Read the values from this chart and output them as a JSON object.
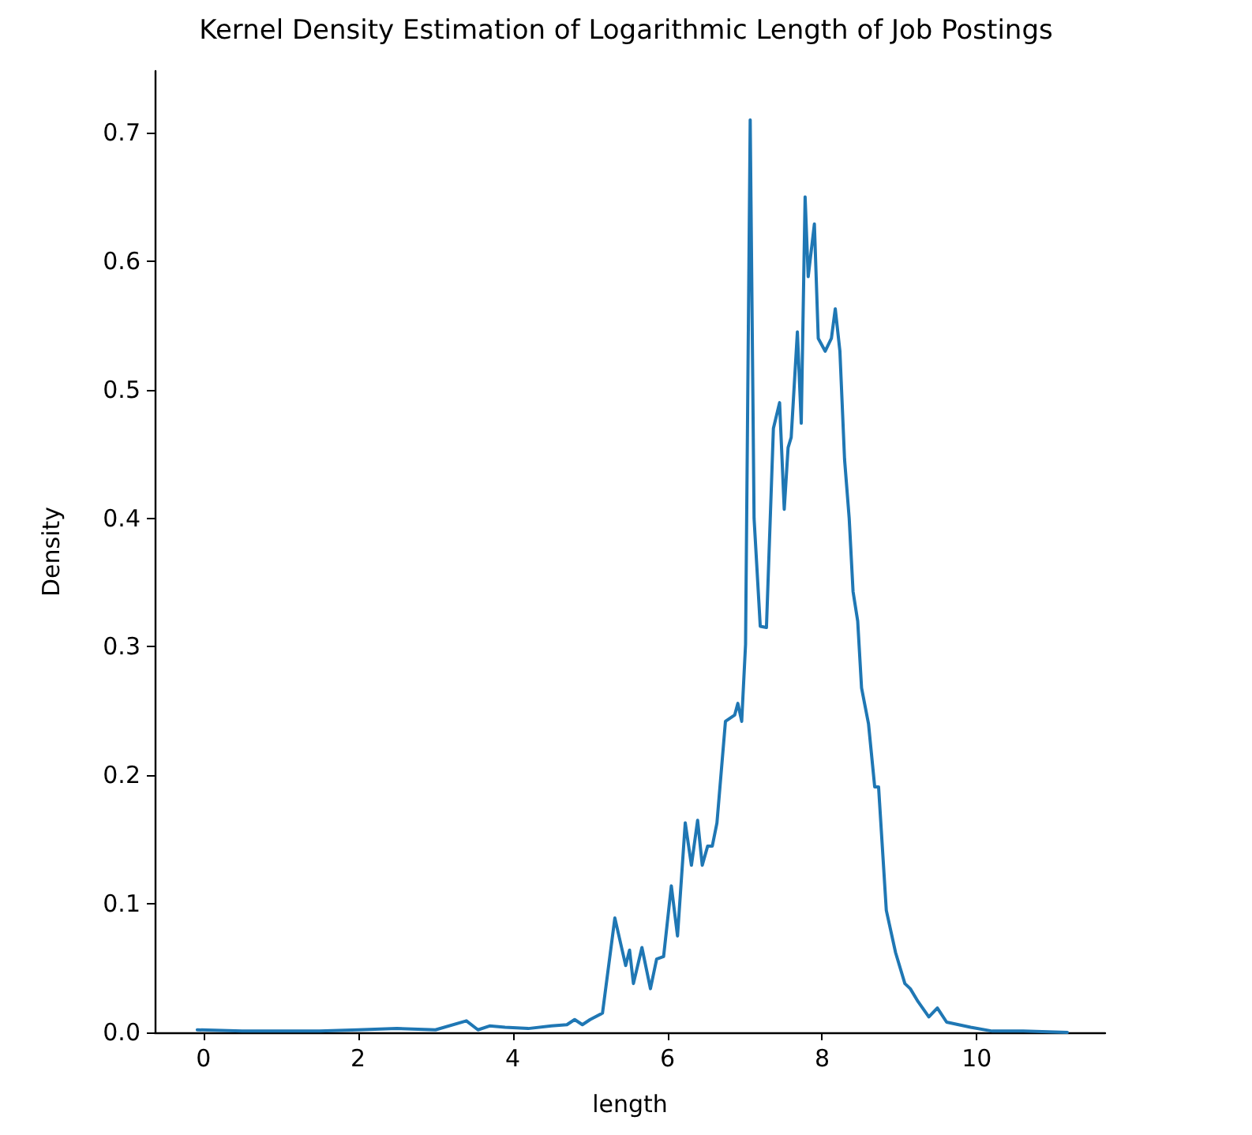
{
  "chart_data": {
    "type": "line",
    "title": "Kernel Density Estimation of Logarithmic Length of Job Postings",
    "xlabel": "length",
    "ylabel": "Density",
    "xlim": [
      -0.63,
      11.66
    ],
    "ylim": [
      0,
      0.748
    ],
    "xticks": [
      0,
      2,
      4,
      6,
      8,
      10
    ],
    "yticks": [
      {
        "value": 0,
        "label": "0.0"
      },
      {
        "value": 0.1,
        "label": "0.1"
      },
      {
        "value": 0.2,
        "label": "0.2"
      },
      {
        "value": 0.3,
        "label": "0.3"
      },
      {
        "value": 0.4,
        "label": "0.4"
      },
      {
        "value": 0.5,
        "label": "0.5"
      },
      {
        "value": 0.6,
        "label": "0.6"
      },
      {
        "value": 0.7,
        "label": "0.7"
      }
    ],
    "grid": false,
    "marker": "none",
    "line_style": "solid",
    "series": [
      {
        "color": "#1f77b4",
        "x": [
          -0.08,
          0.5,
          1.0,
          1.5,
          2.0,
          2.5,
          3.0,
          3.4,
          3.55,
          3.7,
          3.9,
          4.2,
          4.5,
          4.7,
          4.8,
          4.9,
          5.0,
          5.16,
          5.32,
          5.46,
          5.51,
          5.56,
          5.67,
          5.78,
          5.86,
          5.95,
          6.05,
          6.13,
          6.23,
          6.31,
          6.39,
          6.45,
          6.52,
          6.58,
          6.64,
          6.75,
          6.87,
          6.91,
          6.96,
          7.01,
          7.07,
          7.12,
          7.2,
          7.28,
          7.37,
          7.45,
          7.51,
          7.56,
          7.6,
          7.68,
          7.73,
          7.78,
          7.82,
          7.9,
          7.95,
          8.04,
          8.12,
          8.17,
          8.23,
          8.29,
          8.35,
          8.4,
          8.46,
          8.51,
          8.6,
          8.68,
          8.73,
          8.83,
          8.95,
          9.07,
          9.14,
          9.24,
          9.38,
          9.49,
          9.61,
          9.92,
          10.2,
          10.6,
          11.17
        ],
        "values": [
          0.002,
          0.001,
          0.001,
          0.001,
          0.002,
          0.003,
          0.002,
          0.009,
          0.002,
          0.005,
          0.004,
          0.003,
          0.005,
          0.006,
          0.01,
          0.006,
          0.01,
          0.015,
          0.089,
          0.052,
          0.064,
          0.038,
          0.066,
          0.034,
          0.057,
          0.059,
          0.114,
          0.075,
          0.163,
          0.13,
          0.165,
          0.13,
          0.145,
          0.145,
          0.163,
          0.242,
          0.247,
          0.256,
          0.242,
          0.302,
          0.71,
          0.4,
          0.316,
          0.315,
          0.47,
          0.49,
          0.407,
          0.455,
          0.463,
          0.545,
          0.474,
          0.65,
          0.588,
          0.629,
          0.54,
          0.53,
          0.54,
          0.563,
          0.53,
          0.446,
          0.4,
          0.343,
          0.32,
          0.268,
          0.24,
          0.191,
          0.191,
          0.095,
          0.062,
          0.038,
          0.034,
          0.024,
          0.012,
          0.019,
          0.008,
          0.004,
          0.001,
          0.001,
          0.0
        ]
      }
    ]
  }
}
